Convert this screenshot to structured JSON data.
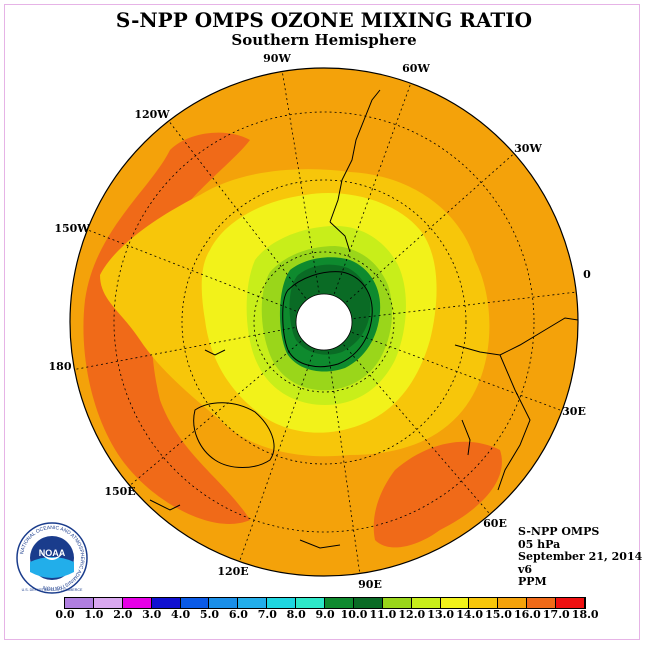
{
  "header": {
    "title": "S-NPP OMPS OZONE MIXING RATIO",
    "subtitle": "Southern Hemisphere"
  },
  "longitude_labels": [
    "90W",
    "60W",
    "30W",
    "0",
    "30E",
    "60E",
    "90E",
    "120E",
    "150E",
    "180",
    "150W",
    "120W"
  ],
  "info": {
    "instrument": "S-NPP OMPS",
    "level": "05 hPa",
    "date": "September 21, 2014",
    "version": "v6",
    "units": "PPM"
  },
  "logo": {
    "text": "NOAA",
    "ring_text": "NATIONAL OCEANIC AND ATMOSPHERIC ADMINISTRATION",
    "bottom_text": "U.S. DEPARTMENT OF COMMERCE",
    "icon": "noaa-logo-icon"
  },
  "colorbar": {
    "ticks": [
      "0.0",
      "1.0",
      "2.0",
      "3.0",
      "4.0",
      "5.0",
      "6.0",
      "7.0",
      "8.0",
      "9.0",
      "10.0",
      "11.0",
      "12.0",
      "13.0",
      "14.0",
      "15.0",
      "16.0",
      "17.0",
      "18.0"
    ],
    "colors": [
      "#b07fe0",
      "#d9a8f0",
      "#e600e6",
      "#1010d0",
      "#0a5ae6",
      "#1a8fe8",
      "#22aeea",
      "#1ed6e0",
      "#2de8c8",
      "#0e8a2e",
      "#0a6b25",
      "#9ad61a",
      "#c8ee1a",
      "#f2f21a",
      "#f7c60a",
      "#f4a20a",
      "#f06a18",
      "#ee1010",
      "#8a5a3a"
    ]
  }
}
